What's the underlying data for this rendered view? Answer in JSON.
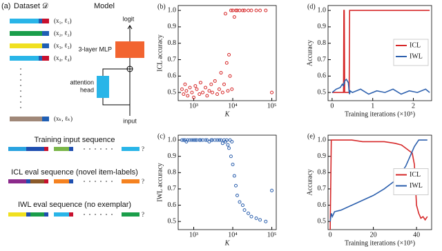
{
  "diagram": {
    "panel_label": "(a)",
    "dataset_title": "Dataset 𝒟",
    "model_title": "Model",
    "items": [
      "(x₁, ℓ₁)",
      "(x₂, ℓ₂)",
      "(x₃, ℓ₃)",
      "(x₄, ℓ₄)",
      "(xₖ, ℓₖ)"
    ],
    "logit": "logit",
    "mlp_label": "3-layer MLP",
    "attention_label": [
      "attention",
      "head"
    ],
    "input": "input",
    "sequences": [
      {
        "title": "Training input sequence",
        "query": "?"
      },
      {
        "title": "ICL eval sequence (novel item-labels)",
        "query": "?"
      },
      {
        "title": "IWL eval sequence (no exemplar)",
        "query": "?"
      }
    ]
  },
  "chart_data": [
    {
      "type": "scatter",
      "panel_label": "(b)",
      "x_label": "K",
      "y_label": "ICL accuracy",
      "xscale": "log",
      "xlim": [
        400,
        130000
      ],
      "ylim": [
        0.45,
        1.03
      ],
      "xticks": [
        {
          "value": 1000,
          "label": "10³"
        },
        {
          "value": 10000,
          "label": "10⁴"
        },
        {
          "value": 100000,
          "label": "10⁵"
        }
      ],
      "yticks": [
        0.5,
        0.6,
        0.7,
        0.8,
        0.9,
        {
          "value": 1,
          "label": "1.0"
        }
      ],
      "x": [
        500,
        550,
        600,
        650,
        700,
        800,
        900,
        1000,
        1100,
        1200,
        1400,
        1500,
        1700,
        2000,
        2200,
        2500,
        2800,
        3000,
        3500,
        4000,
        4500,
        5000,
        5500,
        6000,
        6500,
        7000,
        7500,
        8000,
        8500,
        9000,
        9500,
        10000,
        11000,
        12000,
        13000,
        15000,
        18000,
        20000,
        25000,
        30000,
        40000,
        50000,
        70000,
        100000
      ],
      "series": [
        {
          "color": "#d62728",
          "values": [
            0.52,
            0.49,
            0.55,
            0.51,
            0.48,
            0.53,
            0.5,
            0.47,
            0.54,
            0.52,
            0.49,
            0.56,
            0.5,
            0.53,
            0.48,
            0.51,
            0.55,
            0.5,
            0.57,
            0.49,
            0.52,
            0.62,
            0.5,
            0.55,
            0.98,
            0.68,
            0.51,
            0.73,
            0.6,
            1.0,
            0.52,
            1.0,
            0.96,
            1.0,
            1.0,
            1.0,
            1.0,
            1.0,
            1.0,
            1.0,
            1.0,
            1.0,
            1.0,
            0.5
          ]
        }
      ]
    },
    {
      "type": "scatter",
      "panel_label": "(c)",
      "x_label": "K",
      "y_label": "IWL accuracy",
      "xscale": "log",
      "xlim": [
        400,
        130000
      ],
      "ylim": [
        0.45,
        1.03
      ],
      "xticks": [
        {
          "value": 1000,
          "label": "10³"
        },
        {
          "value": 10000,
          "label": "10⁴"
        },
        {
          "value": 100000,
          "label": "10⁵"
        }
      ],
      "yticks": [
        0.5,
        0.6,
        0.7,
        0.8,
        0.9,
        {
          "value": 1,
          "label": "1.0"
        }
      ],
      "x": [
        500,
        550,
        600,
        650,
        700,
        800,
        900,
        1000,
        1100,
        1200,
        1400,
        1500,
        1700,
        2000,
        2200,
        2500,
        2800,
        3000,
        3500,
        4000,
        4500,
        5000,
        5500,
        6000,
        6500,
        7000,
        7500,
        8000,
        8500,
        9000,
        9500,
        10000,
        11000,
        12000,
        13000,
        15000,
        18000,
        20000,
        25000,
        30000,
        40000,
        50000,
        70000,
        100000
      ],
      "series": [
        {
          "color": "#2b5fad",
          "values": [
            1.0,
            1.0,
            1.0,
            0.99,
            1.0,
            1.0,
            1.0,
            1.0,
            1.0,
            1.0,
            1.0,
            1.0,
            1.0,
            1.0,
            1.0,
            0.99,
            1.0,
            1.0,
            1.0,
            1.0,
            1.0,
            1.0,
            0.98,
            1.0,
            0.99,
            1.0,
            0.97,
            0.95,
            1.0,
            0.9,
            0.99,
            0.85,
            0.78,
            0.72,
            0.66,
            0.62,
            0.6,
            0.57,
            0.55,
            0.53,
            0.52,
            0.51,
            0.5,
            0.69
          ]
        }
      ]
    },
    {
      "type": "line",
      "panel_label": "(d)",
      "x_label": "Training iterations (×10⁵)",
      "y_label": "Accuracy",
      "xlim": [
        -0.1,
        2.45
      ],
      "ylim": [
        0.45,
        1.03
      ],
      "xticks": [
        0,
        1,
        2
      ],
      "yticks": [
        0.5,
        0.6,
        0.7,
        0.8,
        0.9,
        {
          "value": 1,
          "label": "1.0"
        }
      ],
      "legend": "center right",
      "x": [
        0,
        0.1,
        0.2,
        0.25,
        0.28,
        0.29,
        0.3,
        0.31,
        0.35,
        0.4,
        0.42,
        0.43,
        0.44,
        0.5,
        0.7,
        0.9,
        1.1,
        1.3,
        1.5,
        1.7,
        1.9,
        2.1,
        2.3,
        2.4
      ],
      "series": [
        {
          "name": "ICL",
          "color": "#d62728",
          "values": [
            0.5,
            0.5,
            0.5,
            0.5,
            0.5,
            1.0,
            1.0,
            0.5,
            0.5,
            0.5,
            0.5,
            1.0,
            1.0,
            1.0,
            1.0,
            1.0,
            1.0,
            1.0,
            1.0,
            1.0,
            1.0,
            1.0,
            1.0,
            1.0
          ]
        },
        {
          "name": "IWL",
          "color": "#2b5fad",
          "values": [
            0.5,
            0.52,
            0.53,
            0.55,
            0.54,
            0.56,
            0.55,
            0.57,
            0.58,
            0.56,
            0.5,
            0.49,
            0.51,
            0.5,
            0.52,
            0.49,
            0.51,
            0.5,
            0.52,
            0.49,
            0.51,
            0.5,
            0.52,
            0.5
          ]
        }
      ]
    },
    {
      "type": "line",
      "panel_label": "(e)",
      "x_label": "Training iterations (×10⁵)",
      "y_label": "Accuracy",
      "xlim": [
        -1,
        47
      ],
      "ylim": [
        0.45,
        1.03
      ],
      "xticks": [
        0,
        20,
        40
      ],
      "yticks": [
        0.5,
        0.6,
        0.7,
        0.8,
        0.9,
        {
          "value": 1,
          "label": "1.0"
        }
      ],
      "legend": "center right",
      "x": [
        0,
        0.5,
        1,
        2,
        5,
        10,
        15,
        20,
        25,
        30,
        33,
        35,
        37,
        38,
        39,
        40,
        41,
        42,
        43,
        44,
        45
      ],
      "series": [
        {
          "name": "ICL",
          "color": "#d62728",
          "values": [
            0.45,
            1.0,
            1.0,
            1.0,
            1.0,
            1.0,
            0.99,
            0.99,
            0.99,
            0.98,
            0.97,
            0.95,
            0.93,
            0.92,
            0.85,
            0.6,
            0.55,
            0.52,
            0.53,
            0.51,
            0.53
          ]
        },
        {
          "name": "IWL",
          "color": "#2b5fad",
          "values": [
            0.5,
            0.55,
            0.53,
            0.56,
            0.57,
            0.6,
            0.63,
            0.66,
            0.7,
            0.75,
            0.8,
            0.84,
            0.9,
            0.93,
            0.96,
            0.98,
            1.0,
            1.0,
            1.0,
            1.0,
            1.0
          ]
        }
      ]
    }
  ]
}
